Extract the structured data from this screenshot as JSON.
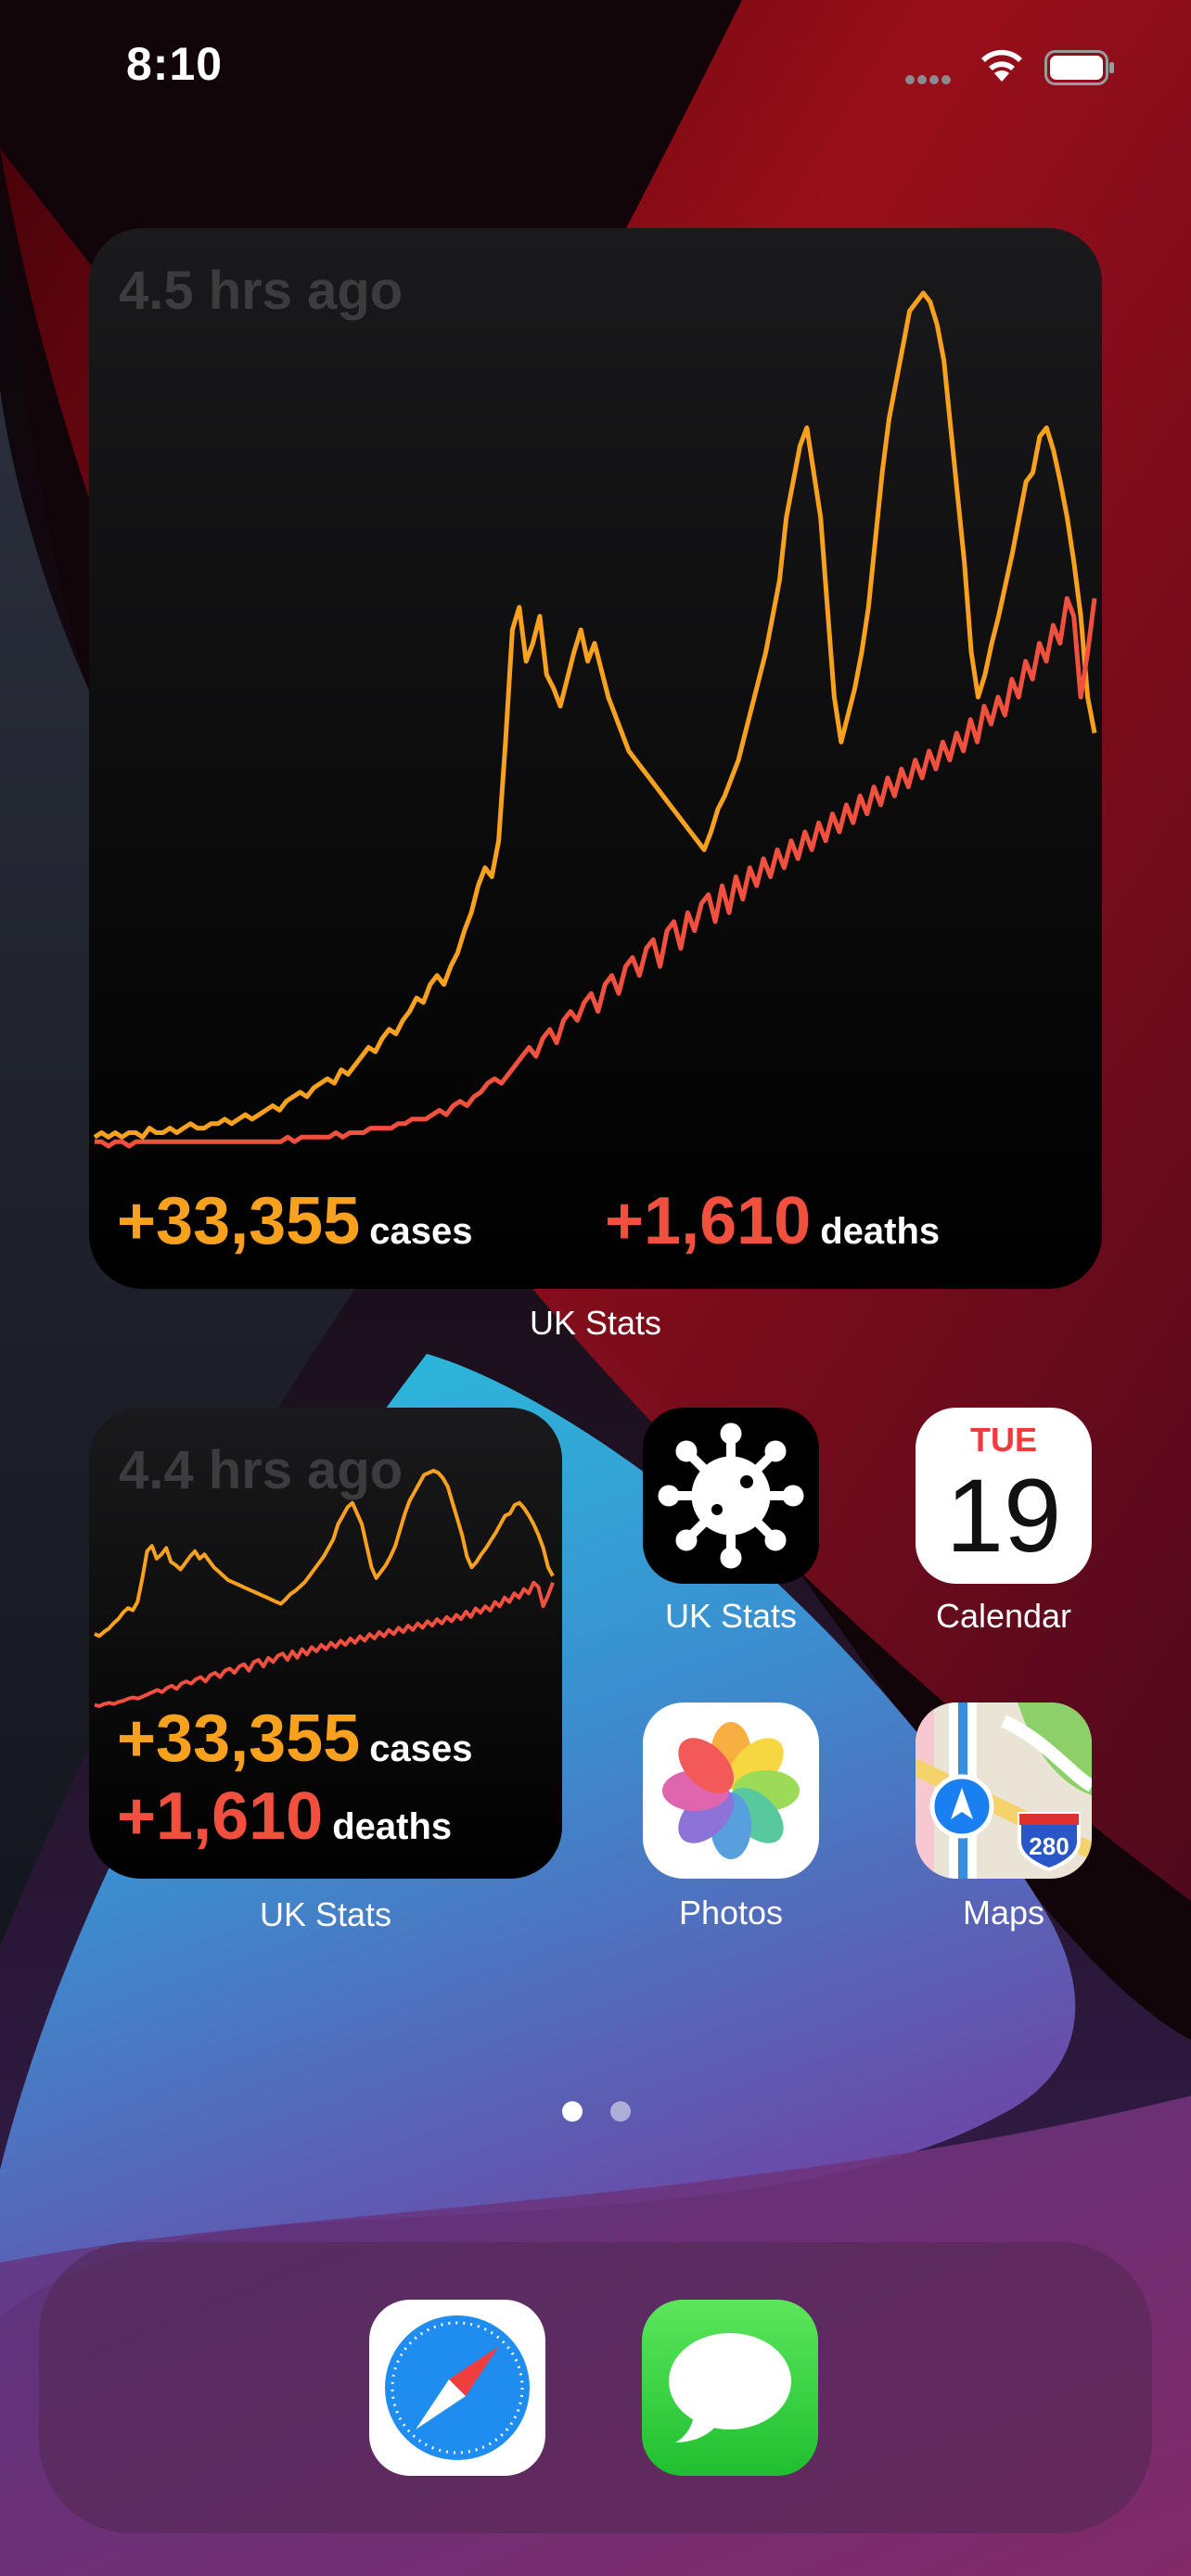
{
  "status_bar": {
    "time": "8:10",
    "icons": [
      "cellular-dots-icon",
      "wifi-icon",
      "battery-icon"
    ]
  },
  "widget_large": {
    "updated": "4.5 hrs ago",
    "cases_value": "+33,355",
    "cases_label": "cases",
    "deaths_value": "+1,610",
    "deaths_label": "deaths",
    "label": "UK Stats"
  },
  "widget_small": {
    "updated": "4.4 hrs ago",
    "cases_value": "+33,355",
    "cases_label": "cases",
    "deaths_value": "+1,610",
    "deaths_label": "deaths",
    "label": "UK Stats"
  },
  "apps": {
    "uk_stats": {
      "label": "UK Stats",
      "icon": "virus-icon"
    },
    "calendar": {
      "label": "Calendar",
      "day": "TUE",
      "date": "19"
    },
    "photos": {
      "label": "Photos",
      "icon": "photos-flower-icon"
    },
    "maps": {
      "label": "Maps",
      "icon": "maps-icon",
      "shield": "280"
    }
  },
  "dock": {
    "apps": [
      {
        "name": "Safari",
        "icon": "safari-compass-icon"
      },
      {
        "name": "Messages",
        "icon": "messages-bubble-icon"
      }
    ]
  },
  "page_indicator": {
    "pages": 2,
    "current": 1
  },
  "colors": {
    "cases": "#f7a11e",
    "deaths": "#f2503e",
    "widget_bg": "#000000"
  },
  "chart_data": {
    "type": "line",
    "series": [
      {
        "name": "cases",
        "values": [
          2,
          3,
          2,
          3,
          2,
          3,
          3,
          2,
          4,
          3,
          3,
          4,
          3,
          4,
          5,
          4,
          4,
          5,
          5,
          6,
          5,
          6,
          7,
          6,
          7,
          8,
          9,
          8,
          10,
          11,
          12,
          11,
          13,
          14,
          15,
          14,
          17,
          16,
          18,
          20,
          22,
          21,
          24,
          26,
          25,
          28,
          30,
          33,
          32,
          36,
          38,
          36,
          40,
          43,
          48,
          52,
          58,
          62,
          60,
          68,
          90,
          115,
          120,
          108,
          112,
          118,
          105,
          102,
          98,
          104,
          110,
          115,
          108,
          112,
          106,
          100,
          96,
          92,
          88,
          86,
          84,
          82,
          80,
          78,
          76,
          74,
          72,
          70,
          68,
          66,
          70,
          75,
          78,
          82,
          86,
          92,
          98,
          104,
          110,
          118,
          126,
          140,
          148,
          156,
          160,
          150,
          140,
          120,
          100,
          90,
          96,
          102,
          110,
          120,
          135,
          150,
          162,
          170,
          178,
          186,
          188,
          190,
          188,
          183,
          175,
          160,
          145,
          130,
          110,
          100,
          105,
          112,
          118,
          125,
          132,
          140,
          148,
          150,
          158,
          160,
          155,
          148,
          140,
          130,
          118,
          100,
          92
        ],
        "note": "relative daily shape; no numeric axis printed"
      },
      {
        "name": "deaths",
        "values": [
          1,
          1,
          0,
          1,
          1,
          0,
          1,
          1,
          1,
          1,
          1,
          1,
          1,
          1,
          1,
          1,
          1,
          1,
          1,
          1,
          1,
          1,
          1,
          1,
          1,
          1,
          1,
          1,
          2,
          1,
          2,
          2,
          2,
          2,
          2,
          3,
          2,
          3,
          3,
          3,
          4,
          4,
          4,
          4,
          5,
          5,
          6,
          6,
          6,
          7,
          8,
          7,
          9,
          10,
          9,
          11,
          12,
          14,
          15,
          14,
          16,
          18,
          20,
          22,
          20,
          24,
          26,
          23,
          28,
          30,
          28,
          32,
          34,
          30,
          36,
          38,
          34,
          40,
          42,
          38,
          44,
          46,
          40,
          48,
          50,
          44,
          52,
          48,
          54,
          56,
          50,
          58,
          52,
          60,
          55,
          62,
          58,
          64,
          60,
          66,
          62,
          68,
          64,
          70,
          66,
          72,
          68,
          74,
          70,
          76,
          72,
          78,
          74,
          80,
          76,
          82,
          78,
          84,
          80,
          86,
          82,
          88,
          84,
          90,
          86,
          92,
          88,
          95,
          90,
          98,
          94,
          100,
          96,
          104,
          100,
          108,
          104,
          112,
          108,
          116,
          112,
          122,
          118,
          100,
          110,
          122
        ],
        "note": "relative daily shape; no numeric axis printed"
      }
    ]
  }
}
